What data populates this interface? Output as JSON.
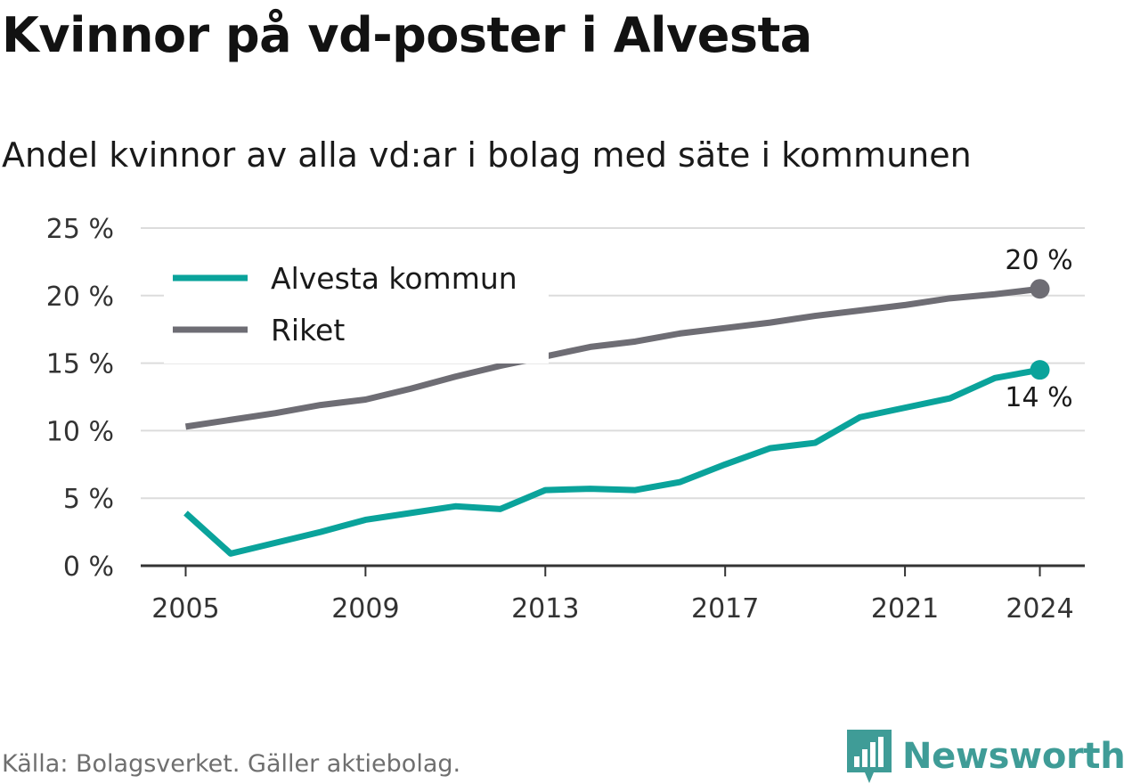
{
  "header": {
    "title": "Kvinnor på vd-poster i Alvesta",
    "subtitle": "Andel kvinnor av alla vd:ar i bolag med säte i kommunen"
  },
  "footer": {
    "source": "Källa: Bolagsverket. Gäller aktiebolag.",
    "brand": "Newsworthy",
    "brand_icon": "bar-chart-icon"
  },
  "colors": {
    "alvesta": "#0aa39b",
    "riket": "#6e6d74",
    "grid": "#dcdcdc",
    "axis": "#333333",
    "brand": "#3f9c97"
  },
  "chart_data": {
    "type": "line",
    "title": "Kvinnor på vd-poster i Alvesta",
    "subtitle": "Andel kvinnor av alla vd:ar i bolag med säte i kommunen",
    "xlabel": "",
    "ylabel": "",
    "x": [
      2005,
      2006,
      2007,
      2008,
      2009,
      2010,
      2011,
      2012,
      2013,
      2014,
      2015,
      2016,
      2017,
      2018,
      2019,
      2020,
      2021,
      2022,
      2023,
      2024
    ],
    "x_ticks": [
      "2005",
      "2009",
      "2013",
      "2017",
      "2021",
      "2024"
    ],
    "y_ticks": [
      "0 %",
      "5 %",
      "10 %",
      "15 %",
      "20 %",
      "25 %"
    ],
    "ylim": [
      0,
      25
    ],
    "xlim": [
      2004,
      2025
    ],
    "grid": "horizontal",
    "legend": "top-left",
    "series": [
      {
        "name": "Alvesta kommun",
        "color": "#0aa39b",
        "values": [
          3.9,
          0.9,
          1.7,
          2.5,
          3.4,
          3.9,
          4.4,
          4.2,
          5.6,
          5.7,
          5.6,
          6.2,
          7.5,
          8.7,
          9.1,
          11.0,
          11.7,
          12.4,
          13.9,
          14.5
        ],
        "end_label": "14 %"
      },
      {
        "name": "Riket",
        "color": "#6e6d74",
        "values": [
          10.3,
          10.8,
          11.3,
          11.9,
          12.3,
          13.1,
          14.0,
          14.8,
          15.5,
          16.2,
          16.6,
          17.2,
          17.6,
          18.0,
          18.5,
          18.9,
          19.3,
          19.8,
          20.1,
          20.5
        ],
        "end_label": "20 %"
      }
    ]
  }
}
